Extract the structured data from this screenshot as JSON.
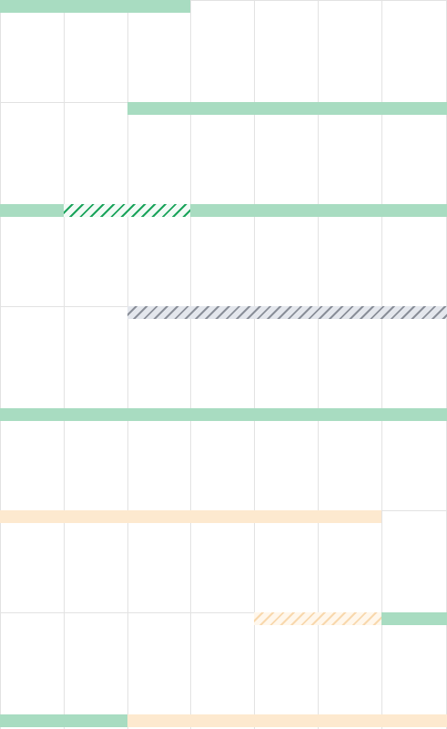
{
  "calendar": {
    "colors": {
      "grid_line": "#e2e2e2",
      "available_green": "#a8dcc1",
      "tentative_green_stripe": "#19a35a",
      "blocked_gray_stripe": "#8a8f99",
      "pending_orange": "#fde9cf",
      "pending_orange_stripe": "#f8d8ad"
    }
  }
}
